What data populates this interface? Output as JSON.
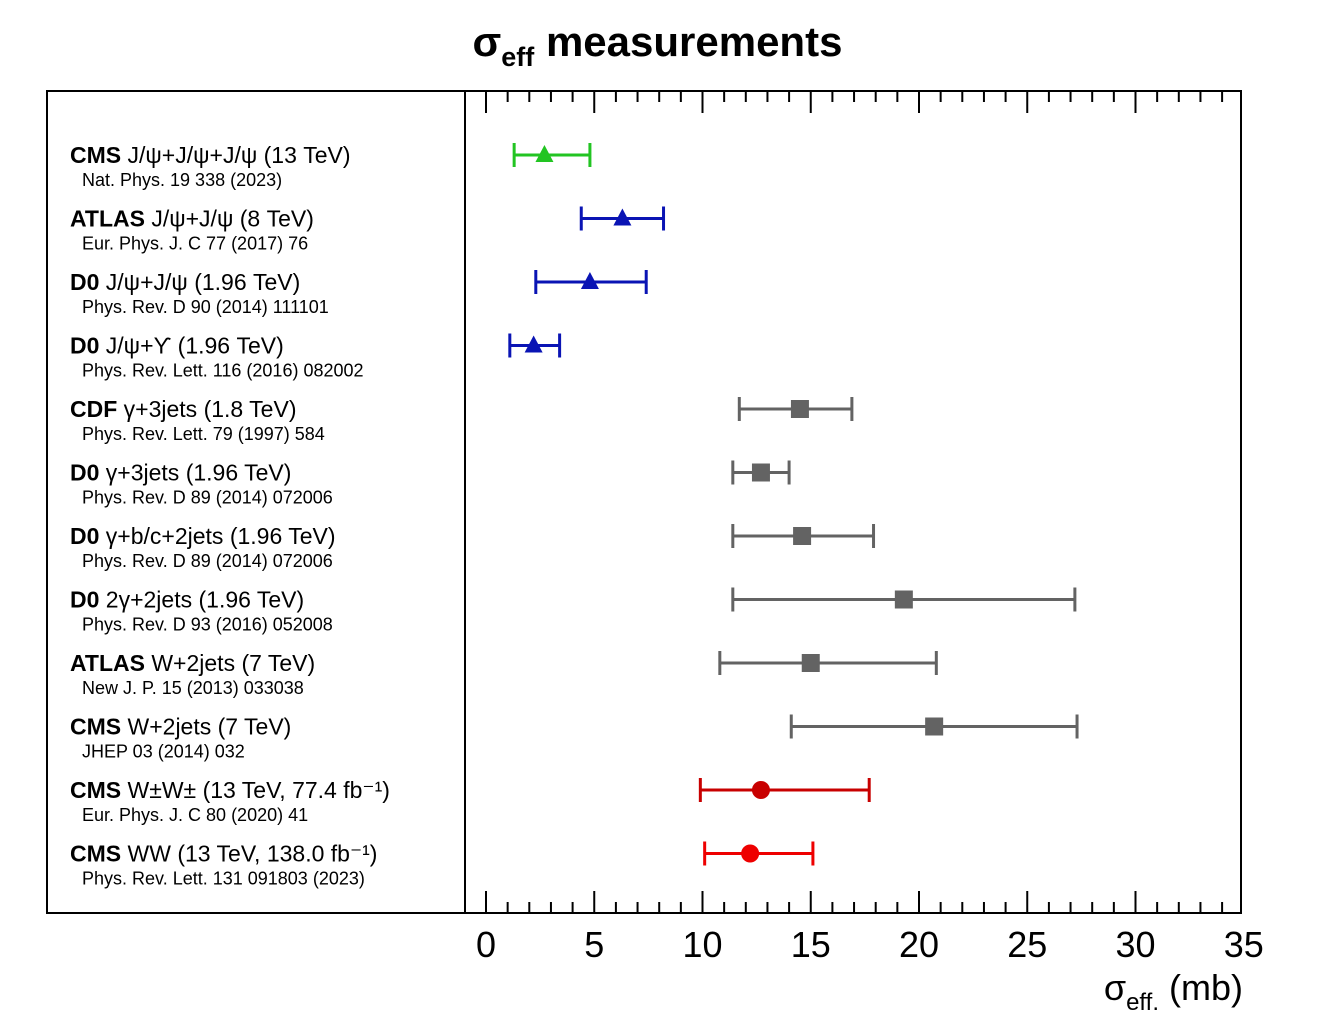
{
  "chart_data": {
    "type": "forest",
    "title": {
      "symbol": "σ",
      "sub": "eff",
      "rest": " measurements"
    },
    "xlabel": {
      "symbol": "σ",
      "sub": "eff.",
      "unit": " (mb)"
    },
    "xlim": [
      -1,
      35
    ],
    "xticks": [
      "0",
      "5",
      "10",
      "15",
      "20",
      "25",
      "30",
      "35"
    ],
    "colors": {
      "green": "#22c422",
      "blue": "#0a14b4",
      "gray": "#636363",
      "darkred": "#c80000",
      "red": "#ee0000"
    },
    "points": [
      {
        "experiment": "CMS",
        "process": "J/ψ+J/ψ+J/ψ (13 TeV)",
        "reference": "Nat. Phys. 19 338 (2023)",
        "value": 2.7,
        "low": 1.3,
        "high": 4.8,
        "marker": "triangle",
        "color": "green"
      },
      {
        "experiment": "ATLAS",
        "process": "J/ψ+J/ψ (8 TeV)",
        "reference": "Eur. Phys. J. C 77 (2017) 76",
        "value": 6.3,
        "low": 4.4,
        "high": 8.2,
        "marker": "triangle",
        "color": "blue"
      },
      {
        "experiment": "D0",
        "process": "J/ψ+J/ψ (1.96 TeV)",
        "reference": "Phys. Rev. D 90 (2014) 111101",
        "value": 4.8,
        "low": 2.3,
        "high": 7.4,
        "marker": "triangle",
        "color": "blue"
      },
      {
        "experiment": "D0",
        "process": "J/ψ+ϒ (1.96 TeV)",
        "reference": "Phys. Rev. Lett. 116 (2016) 082002",
        "value": 2.2,
        "low": 1.1,
        "high": 3.4,
        "marker": "triangle",
        "color": "blue"
      },
      {
        "experiment": "CDF",
        "process": "γ+3jets (1.8 TeV)",
        "reference": "Phys. Rev. Lett. 79 (1997) 584",
        "value": 14.5,
        "low": 11.7,
        "high": 16.9,
        "marker": "square",
        "color": "gray"
      },
      {
        "experiment": "D0",
        "process": "γ+3jets (1.96 TeV)",
        "reference": "Phys. Rev. D 89 (2014) 072006",
        "value": 12.7,
        "low": 11.4,
        "high": 14.0,
        "marker": "square",
        "color": "gray"
      },
      {
        "experiment": "D0",
        "process": "γ+b/c+2jets (1.96 TeV)",
        "reference": "Phys. Rev. D 89 (2014) 072006",
        "value": 14.6,
        "low": 11.4,
        "high": 17.9,
        "marker": "square",
        "color": "gray"
      },
      {
        "experiment": "D0",
        "process": "2γ+2jets (1.96 TeV)",
        "reference": "Phys. Rev. D 93 (2016) 052008",
        "value": 19.3,
        "low": 11.4,
        "high": 27.2,
        "marker": "square",
        "color": "gray"
      },
      {
        "experiment": "ATLAS",
        "process": "W+2jets (7 TeV)",
        "reference": "New J. P. 15 (2013) 033038",
        "value": 15.0,
        "low": 10.8,
        "high": 20.8,
        "marker": "square",
        "color": "gray"
      },
      {
        "experiment": "CMS",
        "process": "W+2jets (7 TeV)",
        "reference": "JHEP 03 (2014) 032",
        "value": 20.7,
        "low": 14.1,
        "high": 27.3,
        "marker": "square",
        "color": "gray"
      },
      {
        "experiment": "CMS",
        "process": "W±W± (13 TeV, 77.4 fb⁻¹)",
        "reference": "Eur. Phys. J. C 80 (2020) 41",
        "value": 12.7,
        "low": 9.9,
        "high": 17.7,
        "marker": "circle",
        "color": "darkred"
      },
      {
        "experiment": "CMS",
        "process": "WW (13 TeV, 138.0 fb⁻¹)",
        "reference": "Phys. Rev. Lett. 131 091803 (2023)",
        "value": 12.2,
        "low": 10.1,
        "high": 15.1,
        "marker": "circle",
        "color": "red"
      }
    ]
  }
}
